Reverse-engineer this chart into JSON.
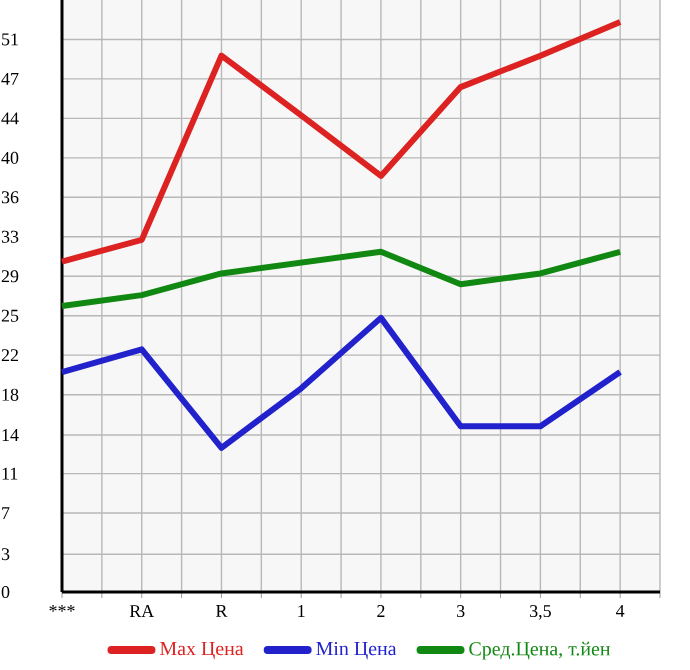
{
  "chart_data": {
    "type": "line",
    "categories": [
      "***",
      "RA",
      "R",
      "1",
      "2",
      "3",
      "3,5",
      "4"
    ],
    "series": [
      {
        "name": "Max Цена",
        "color": "#dd2222",
        "values": [
          30.5,
          32.5,
          49.5,
          44,
          38.4,
          46.6,
          49.5,
          52.6
        ]
      },
      {
        "name": "Min Цена",
        "color": "#2222cc",
        "values": [
          20.3,
          22.4,
          13.3,
          18.8,
          25.3,
          15.3,
          15.3,
          20.3
        ]
      },
      {
        "name": "Сред.Цена, т.йен",
        "color": "#118811",
        "values": [
          26.4,
          27.4,
          29.4,
          30.4,
          31.4,
          28.4,
          29.4,
          31.4
        ]
      }
    ],
    "ylim": [
      0,
      54.64
    ],
    "yticks": [
      0,
      {
        "value": 3.49,
        "label": "3"
      },
      {
        "value": 7.29,
        "label": "7"
      },
      {
        "value": 10.93,
        "label": "11"
      },
      {
        "value": 14.49,
        "label": "14"
      },
      {
        "value": 18.21,
        "label": "18"
      },
      {
        "value": 21.86,
        "label": "22"
      },
      {
        "value": 25.5,
        "label": "25"
      },
      {
        "value": 29.14,
        "label": "29"
      },
      {
        "value": 32.79,
        "label": "33"
      },
      {
        "value": 36.43,
        "label": "36"
      },
      {
        "value": 40.07,
        "label": "40"
      },
      {
        "value": 43.71,
        "label": "44"
      },
      {
        "value": 47.36,
        "label": "47"
      },
      51
    ],
    "grid": true,
    "legend": "bottom",
    "marker": "none",
    "line_style": "solid"
  }
}
